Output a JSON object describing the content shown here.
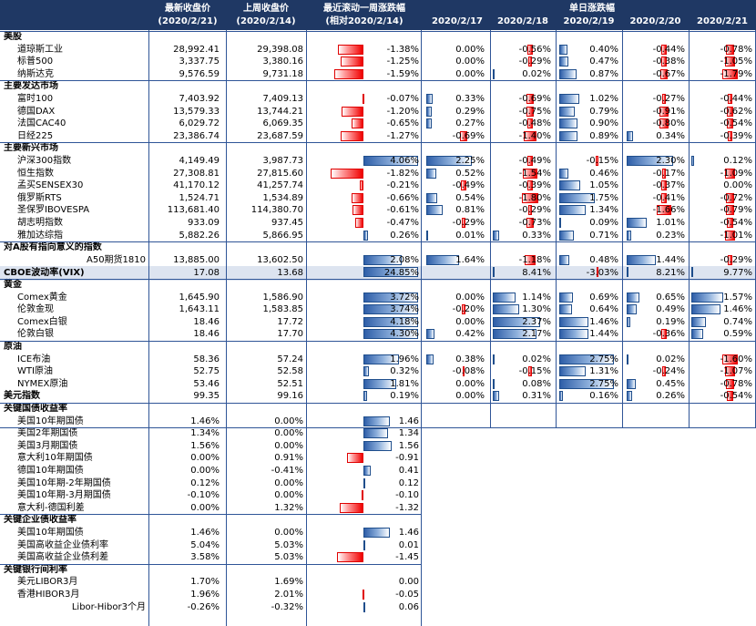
{
  "header": {
    "latest": [
      "最新收盘价",
      "(2020/2/21)"
    ],
    "prev": [
      "上周收盘价",
      "(2020/2/14)"
    ],
    "week": [
      "最近滚动一周涨跌幅",
      "(相对2020/2/14)"
    ],
    "daily_title": "单日涨跌幅",
    "dates": [
      "2020/2/17",
      "2020/2/18",
      "2020/2/19",
      "2020/2/20",
      "2020/2/21"
    ]
  },
  "colors": {
    "header_bg": "#1f3864",
    "negative": "#f00000",
    "positive": "#2e5ea8",
    "highlight": "#dde4f0",
    "grid": "#2f5597"
  },
  "rows": [
    {
      "kind": "section",
      "label": "美股"
    },
    {
      "kind": "data",
      "label": "道琼斯工业",
      "latest": "28,992.41",
      "prev": "29,398.08",
      "week": {
        "text": "-1.38%",
        "v": -1.38
      },
      "daily": [
        {
          "text": "0.00%",
          "v": 0
        },
        {
          "text": "-0.56%",
          "v": -0.56
        },
        {
          "text": "0.40%",
          "v": 0.4
        },
        {
          "text": "-0.44%",
          "v": -0.44
        },
        {
          "text": "-0.78%",
          "v": -0.78
        }
      ]
    },
    {
      "kind": "data",
      "label": "标普500",
      "latest": "3,337.75",
      "prev": "3,380.16",
      "week": {
        "text": "-1.25%",
        "v": -1.25
      },
      "daily": [
        {
          "text": "0.00%",
          "v": 0
        },
        {
          "text": "-0.29%",
          "v": -0.29
        },
        {
          "text": "0.47%",
          "v": 0.47
        },
        {
          "text": "-0.38%",
          "v": -0.38
        },
        {
          "text": "-1.05%",
          "v": -1.05
        }
      ]
    },
    {
      "kind": "data",
      "label": "纳斯达克",
      "latest": "9,576.59",
      "prev": "9,731.18",
      "week": {
        "text": "-1.59%",
        "v": -1.59
      },
      "daily": [
        {
          "text": "0.00%",
          "v": 0
        },
        {
          "text": "0.02%",
          "v": 0.02
        },
        {
          "text": "0.87%",
          "v": 0.87
        },
        {
          "text": "-0.67%",
          "v": -0.67
        },
        {
          "text": "-1.79%",
          "v": -1.79
        }
      ]
    },
    {
      "kind": "section",
      "label": "主要发达市场"
    },
    {
      "kind": "data",
      "label": "富时100",
      "latest": "7,403.92",
      "prev": "7,409.13",
      "week": {
        "text": "-0.07%",
        "v": -0.07
      },
      "daily": [
        {
          "text": "0.33%",
          "v": 0.33
        },
        {
          "text": "-0.69%",
          "v": -0.69
        },
        {
          "text": "1.02%",
          "v": 1.02
        },
        {
          "text": "-0.27%",
          "v": -0.27
        },
        {
          "text": "-0.44%",
          "v": -0.44
        }
      ]
    },
    {
      "kind": "data",
      "label": "德国DAX",
      "latest": "13,579.33",
      "prev": "13,744.21",
      "week": {
        "text": "-1.20%",
        "v": -1.2
      },
      "daily": [
        {
          "text": "0.29%",
          "v": 0.29
        },
        {
          "text": "-0.75%",
          "v": -0.75
        },
        {
          "text": "0.79%",
          "v": 0.79
        },
        {
          "text": "-0.91%",
          "v": -0.91
        },
        {
          "text": "-0.62%",
          "v": -0.62
        }
      ]
    },
    {
      "kind": "data",
      "label": "法国CAC40",
      "latest": "6,029.72",
      "prev": "6,069.35",
      "week": {
        "text": "-0.65%",
        "v": -0.65
      },
      "daily": [
        {
          "text": "0.27%",
          "v": 0.27
        },
        {
          "text": "-0.48%",
          "v": -0.48
        },
        {
          "text": "0.90%",
          "v": 0.9
        },
        {
          "text": "-0.80%",
          "v": -0.8
        },
        {
          "text": "-0.54%",
          "v": -0.54
        }
      ]
    },
    {
      "kind": "data",
      "label": "日经225",
      "latest": "23,386.74",
      "prev": "23,687.59",
      "week": {
        "text": "-1.27%",
        "v": -1.27
      },
      "daily": [
        {
          "text": "-0.69%",
          "v": -0.69
        },
        {
          "text": "-1.40%",
          "v": -1.4
        },
        {
          "text": "0.89%",
          "v": 0.89
        },
        {
          "text": "0.34%",
          "v": 0.34
        },
        {
          "text": "-0.39%",
          "v": -0.39
        }
      ]
    },
    {
      "kind": "section",
      "label": "主要新兴市场"
    },
    {
      "kind": "data",
      "label": "沪深300指数",
      "latest": "4,149.49",
      "prev": "3,987.73",
      "week": {
        "text": "4.06%",
        "v": 4.06
      },
      "daily": [
        {
          "text": "2.25%",
          "v": 2.25
        },
        {
          "text": "-0.49%",
          "v": -0.49
        },
        {
          "text": "-0.15%",
          "v": -0.15
        },
        {
          "text": "2.30%",
          "v": 2.3
        },
        {
          "text": "0.12%",
          "v": 0.12
        }
      ]
    },
    {
      "kind": "data",
      "label": "恒生指数",
      "latest": "27,308.81",
      "prev": "27,815.60",
      "week": {
        "text": "-1.82%",
        "v": -1.82
      },
      "daily": [
        {
          "text": "0.52%",
          "v": 0.52
        },
        {
          "text": "-1.54%",
          "v": -1.54
        },
        {
          "text": "0.46%",
          "v": 0.46
        },
        {
          "text": "-0.17%",
          "v": -0.17
        },
        {
          "text": "-1.09%",
          "v": -1.09
        }
      ]
    },
    {
      "kind": "data",
      "label": "孟买SENSEX30",
      "latest": "41,170.12",
      "prev": "41,257.74",
      "week": {
        "text": "-0.21%",
        "v": -0.21
      },
      "daily": [
        {
          "text": "-0.49%",
          "v": -0.49
        },
        {
          "text": "-0.39%",
          "v": -0.39
        },
        {
          "text": "1.05%",
          "v": 1.05
        },
        {
          "text": "-0.37%",
          "v": -0.37
        },
        {
          "text": "0.00%",
          "v": 0
        }
      ]
    },
    {
      "kind": "data",
      "label": "俄罗斯RTS",
      "latest": "1,524.71",
      "prev": "1,534.89",
      "week": {
        "text": "-0.66%",
        "v": -0.66
      },
      "daily": [
        {
          "text": "0.54%",
          "v": 0.54
        },
        {
          "text": "-1.80%",
          "v": -1.8
        },
        {
          "text": "1.75%",
          "v": 1.75
        },
        {
          "text": "-0.41%",
          "v": -0.41
        },
        {
          "text": "-0.72%",
          "v": -0.72
        }
      ]
    },
    {
      "kind": "data",
      "label": "圣保罗IBOVESPA",
      "latest": "113,681.40",
      "prev": "114,380.70",
      "week": {
        "text": "-0.61%",
        "v": -0.61
      },
      "daily": [
        {
          "text": "0.81%",
          "v": 0.81
        },
        {
          "text": "-0.29%",
          "v": -0.29
        },
        {
          "text": "1.34%",
          "v": 1.34
        },
        {
          "text": "-1.66%",
          "v": -1.66
        },
        {
          "text": "-0.79%",
          "v": -0.79
        }
      ]
    },
    {
      "kind": "data",
      "label": "胡志明指数",
      "latest": "933.09",
      "prev": "937.45",
      "week": {
        "text": "-0.47%",
        "v": -0.47
      },
      "daily": [
        {
          "text": "-0.29%",
          "v": -0.29
        },
        {
          "text": "-0.73%",
          "v": -0.73
        },
        {
          "text": "0.09%",
          "v": 0.09
        },
        {
          "text": "1.01%",
          "v": 1.01
        },
        {
          "text": "-0.54%",
          "v": -0.54
        }
      ]
    },
    {
      "kind": "data",
      "label": "雅加达综指",
      "latest": "5,882.26",
      "prev": "5,866.95",
      "week": {
        "text": "0.26%",
        "v": 0.26
      },
      "daily": [
        {
          "text": "0.01%",
          "v": 0.01
        },
        {
          "text": "0.33%",
          "v": 0.33
        },
        {
          "text": "0.71%",
          "v": 0.71
        },
        {
          "text": "0.23%",
          "v": 0.23
        },
        {
          "text": "-1.01%",
          "v": -1.01
        }
      ]
    },
    {
      "kind": "section",
      "label": "对A股有指向意义的指数"
    },
    {
      "kind": "data",
      "label": "A50期货1810",
      "align": "right",
      "latest": "13,885.00",
      "prev": "13,602.50",
      "week": {
        "text": "2.08%",
        "v": 2.08
      },
      "daily": [
        {
          "text": "1.64%",
          "v": 1.64
        },
        {
          "text": "-1.18%",
          "v": -1.18
        },
        {
          "text": "0.48%",
          "v": 0.48
        },
        {
          "text": "1.44%",
          "v": 1.44
        },
        {
          "text": "-0.29%",
          "v": -0.29
        }
      ]
    },
    {
      "kind": "vix",
      "label": "CBOE波动率(VIX)",
      "latest": "17.08",
      "prev": "13.68",
      "week": {
        "text": "24.85%",
        "v": 24.85
      },
      "daily": [
        {
          "text": "8.41%",
          "v": 8.41
        },
        {
          "text": "-3.03%",
          "v": -3.03
        },
        {
          "text": "8.21%",
          "v": 8.21
        },
        {
          "text": "9.77%",
          "v": 9.77
        }
      ]
    },
    {
      "kind": "section",
      "label": "黄金"
    },
    {
      "kind": "data",
      "label": "Comex黄金",
      "latest": "1,645.90",
      "prev": "1,586.90",
      "week": {
        "text": "3.72%",
        "v": 3.72
      },
      "daily": [
        {
          "text": "0.00%",
          "v": 0
        },
        {
          "text": "1.14%",
          "v": 1.14
        },
        {
          "text": "0.69%",
          "v": 0.69
        },
        {
          "text": "0.65%",
          "v": 0.65
        },
        {
          "text": "1.57%",
          "v": 1.57
        }
      ]
    },
    {
      "kind": "data",
      "label": "伦敦金现",
      "latest": "1,643.11",
      "prev": "1,583.85",
      "week": {
        "text": "3.74%",
        "v": 3.74
      },
      "daily": [
        {
          "text": "-0.20%",
          "v": -0.2
        },
        {
          "text": "1.30%",
          "v": 1.3
        },
        {
          "text": "0.64%",
          "v": 0.64
        },
        {
          "text": "0.49%",
          "v": 0.49
        },
        {
          "text": "1.46%",
          "v": 1.46
        }
      ]
    },
    {
      "kind": "data",
      "label": "Comex白银",
      "latest": "18.46",
      "prev": "17.72",
      "week": {
        "text": "4.18%",
        "v": 4.18
      },
      "daily": [
        {
          "text": "0.00%",
          "v": 0
        },
        {
          "text": "2.37%",
          "v": 2.37
        },
        {
          "text": "1.46%",
          "v": 1.46
        },
        {
          "text": "0.19%",
          "v": 0.19
        },
        {
          "text": "0.74%",
          "v": 0.74
        }
      ]
    },
    {
      "kind": "data",
      "label": "伦敦白银",
      "latest": "18.46",
      "prev": "17.70",
      "week": {
        "text": "4.30%",
        "v": 4.3
      },
      "daily": [
        {
          "text": "0.42%",
          "v": 0.42
        },
        {
          "text": "2.17%",
          "v": 2.17
        },
        {
          "text": "1.44%",
          "v": 1.44
        },
        {
          "text": "-0.36%",
          "v": -0.36
        },
        {
          "text": "0.59%",
          "v": 0.59
        }
      ]
    },
    {
      "kind": "section",
      "label": "原油"
    },
    {
      "kind": "data",
      "label": "ICE布油",
      "latest": "58.36",
      "prev": "57.24",
      "week": {
        "text": "1.96%",
        "v": 1.96
      },
      "daily": [
        {
          "text": "0.38%",
          "v": 0.38
        },
        {
          "text": "0.02%",
          "v": 0.02
        },
        {
          "text": "2.75%",
          "v": 2.75
        },
        {
          "text": "0.02%",
          "v": 0.02
        },
        {
          "text": "-1.60%",
          "v": -1.6
        }
      ]
    },
    {
      "kind": "data",
      "label": "WTI原油",
      "latest": "52.75",
      "prev": "52.58",
      "week": {
        "text": "0.32%",
        "v": 0.32
      },
      "daily": [
        {
          "text": "-0.08%",
          "v": -0.08
        },
        {
          "text": "-0.15%",
          "v": -0.15
        },
        {
          "text": "1.31%",
          "v": 1.31
        },
        {
          "text": "-0.24%",
          "v": -0.24
        },
        {
          "text": "-1.07%",
          "v": -1.07
        }
      ]
    },
    {
      "kind": "data",
      "label": "NYMEX原油",
      "latest": "53.46",
      "prev": "52.51",
      "week": {
        "text": "1.81%",
        "v": 1.81
      },
      "daily": [
        {
          "text": "0.00%",
          "v": 0
        },
        {
          "text": "0.08%",
          "v": 0.08
        },
        {
          "text": "2.75%",
          "v": 2.75
        },
        {
          "text": "0.45%",
          "v": 0.45
        },
        {
          "text": "-0.78%",
          "v": -0.78
        }
      ]
    },
    {
      "kind": "bold",
      "label": "美元指数",
      "latest": "99.35",
      "prev": "99.16",
      "week": {
        "text": "0.19%",
        "v": 0.19
      },
      "daily": [
        {
          "text": "0.00%",
          "v": 0
        },
        {
          "text": "0.31%",
          "v": 0.31
        },
        {
          "text": "0.16%",
          "v": 0.16
        },
        {
          "text": "0.26%",
          "v": 0.26
        },
        {
          "text": "-0.54%",
          "v": -0.54
        }
      ]
    },
    {
      "kind": "section",
      "label": "关键国债收益率"
    },
    {
      "kind": "data",
      "label": "美国10年期国债",
      "latest": "1.46%",
      "prev": "0.00%",
      "week": {
        "text": "1.46",
        "v": 1.46
      },
      "daily": []
    },
    {
      "kind": "data",
      "label": "美国2年期国债",
      "latest": "1.34%",
      "prev": "0.00%",
      "week": {
        "text": "1.34",
        "v": 1.34
      },
      "daily": []
    },
    {
      "kind": "data",
      "label": "美国3月期国债",
      "latest": "1.56%",
      "prev": "0.00%",
      "week": {
        "text": "1.56",
        "v": 1.56
      },
      "daily": []
    },
    {
      "kind": "data",
      "label": "意大利10年期国债",
      "latest": "0.00%",
      "prev": "0.91%",
      "week": {
        "text": "-0.91",
        "v": -0.91
      },
      "daily": []
    },
    {
      "kind": "data",
      "label": "德国10年期国债",
      "latest": "0.00%",
      "prev": "-0.41%",
      "week": {
        "text": "0.41",
        "v": 0.41
      },
      "daily": []
    },
    {
      "kind": "data",
      "label": "美国10年期-2年期国债",
      "latest": "0.12%",
      "prev": "0.00%",
      "week": {
        "text": "0.12",
        "v": 0.12
      },
      "daily": []
    },
    {
      "kind": "data",
      "label": "美国10年期-3月期国债",
      "latest": "-0.10%",
      "prev": "0.00%",
      "week": {
        "text": "-0.10",
        "v": -0.1
      },
      "daily": []
    },
    {
      "kind": "data",
      "label": "意大利-德国利差",
      "latest": "0.00%",
      "prev": "1.32%",
      "week": {
        "text": "-1.32",
        "v": -1.32
      },
      "daily": []
    },
    {
      "kind": "section",
      "label": "关键企业债收益率"
    },
    {
      "kind": "data",
      "label": "美国10年期国债",
      "latest": "1.46%",
      "prev": "0.00%",
      "week": {
        "text": "1.46",
        "v": 1.46
      },
      "daily": []
    },
    {
      "kind": "data",
      "label": "美国高收益企业债利率",
      "latest": "5.04%",
      "prev": "5.03%",
      "week": {
        "text": "0.01",
        "v": 0.01
      },
      "daily": []
    },
    {
      "kind": "data",
      "label": "美国高收益企业债利差",
      "latest": "3.58%",
      "prev": "5.03%",
      "week": {
        "text": "-1.45",
        "v": -1.45
      },
      "daily": []
    },
    {
      "kind": "section",
      "label": "关键银行间利率"
    },
    {
      "kind": "data",
      "label": "美元LIBOR3月",
      "latest": "1.70%",
      "prev": "1.69%",
      "week": {
        "text": "0.00",
        "v": 0.0
      },
      "daily": []
    },
    {
      "kind": "data",
      "label": "香港HIBOR3月",
      "latest": "1.96%",
      "prev": "2.01%",
      "week": {
        "text": "-0.05",
        "v": -0.05
      },
      "daily": []
    },
    {
      "kind": "data",
      "label": "Libor-Hibor3个月",
      "align": "right",
      "latest": "-0.26%",
      "prev": "-0.32%",
      "week": {
        "text": "0.06",
        "v": 0.06
      },
      "daily": []
    }
  ]
}
